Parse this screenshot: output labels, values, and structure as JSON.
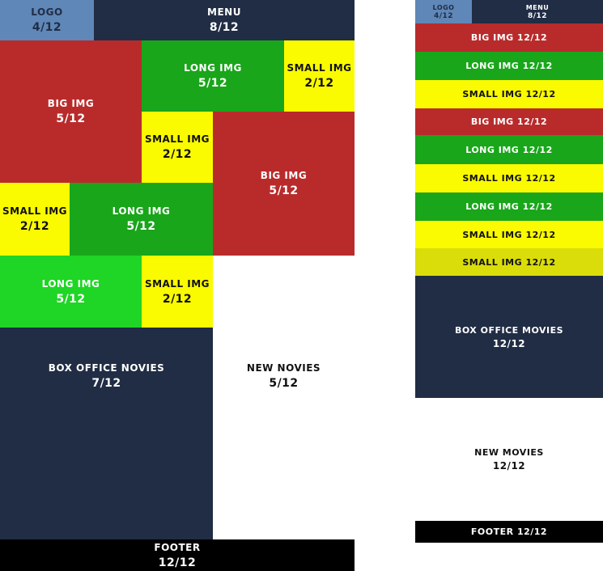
{
  "colors": {
    "logo": "#5f87b8",
    "navy": "#202d44",
    "red": "#b92b2b",
    "green": "#19a61a",
    "bright_green": "#1fd525",
    "yellow": "#fafa00",
    "olive_yellow": "#dadd0a",
    "black": "#000000",
    "white": "#ffffff"
  },
  "desktop": {
    "logo": {
      "label": "LOGO",
      "cols": "4/12"
    },
    "menu": {
      "label": "MENU",
      "cols": "8/12"
    },
    "big_img_1": {
      "label": "BIG IMG",
      "cols": "5/12"
    },
    "long_img_1": {
      "label": "LONG IMG",
      "cols": "5/12"
    },
    "small_img_1": {
      "label": "SMALL IMG",
      "cols": "2/12"
    },
    "small_img_2": {
      "label": "SMALL IMG",
      "cols": "2/12"
    },
    "big_img_2": {
      "label": "BIG IMG",
      "cols": "5/12"
    },
    "small_img_3": {
      "label": "SMALL IMG",
      "cols": "2/12"
    },
    "long_img_2": {
      "label": "LONG IMG",
      "cols": "5/12"
    },
    "long_img_3": {
      "label": "LONG IMG",
      "cols": "5/12"
    },
    "small_img_4": {
      "label": "SMALL IMG",
      "cols": "2/12"
    },
    "box_office": {
      "label": "BOX OFFICE NOVIES",
      "cols": "7/12"
    },
    "new_movies": {
      "label": "NEW NOVIES",
      "cols": "5/12"
    },
    "footer": {
      "label": "FOOTER",
      "cols": "12/12"
    }
  },
  "mobile": {
    "logo": {
      "label": "LOGO",
      "cols": "4/12"
    },
    "menu": {
      "label": "MENU",
      "cols": "8/12"
    },
    "rows": [
      {
        "label": "BIG IMG 12/12",
        "color": "#b92b2b"
      },
      {
        "label": "LONG IMG 12/12",
        "color": "#19a61a"
      },
      {
        "label": "SMALL IMG 12/12",
        "color": "#fafa00"
      },
      {
        "label": "BIG IMG 12/12",
        "color": "#b92b2b"
      },
      {
        "label": "LONG IMG 12/12",
        "color": "#19a61a"
      },
      {
        "label": "SMALL IMG 12/12",
        "color": "#fafa00"
      },
      {
        "label": "LONG IMG 12/12",
        "color": "#19a61a"
      },
      {
        "label": "SMALL IMG 12/12",
        "color": "#fafa00"
      },
      {
        "label": "SMALL IMG 12/12",
        "color": "#dadd0a"
      }
    ],
    "box_office": {
      "label": "BOX OFFICE MOVIES",
      "cols": "12/12"
    },
    "new_movies": {
      "label": "NEW MOVIES",
      "cols": "12/12"
    },
    "footer": {
      "label": "FOOTER 12/12"
    }
  }
}
